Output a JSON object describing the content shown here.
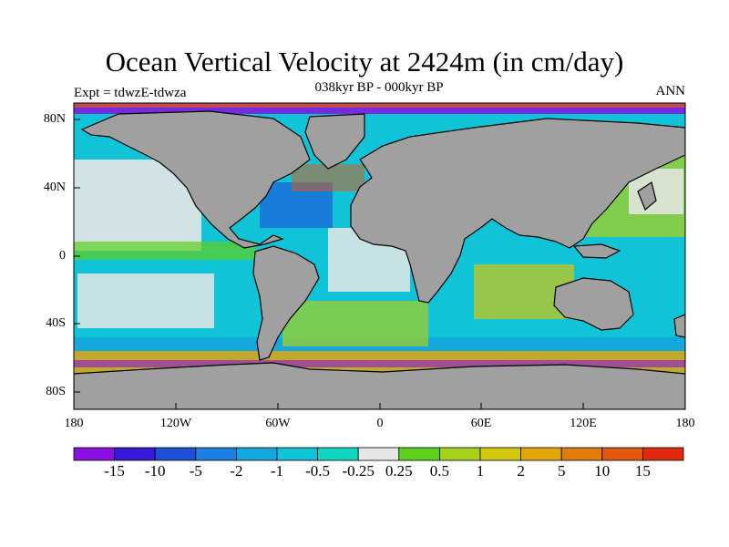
{
  "title": "Ocean Vertical Velocity at 2424m (in cm/day)",
  "subtitle": "038kyr BP - 000kyr BP",
  "left_label": "Expt = tdwzE-tdwza",
  "right_label": "ANN",
  "axes": {
    "lat_ticks": [
      "80N",
      "40N",
      "0",
      "40S",
      "80S"
    ],
    "lon_ticks": [
      "180",
      "120W",
      "60W",
      "0",
      "60E",
      "120E",
      "180"
    ],
    "lat_values": [
      80,
      40,
      0,
      -40,
      -80
    ],
    "lon_values": [
      -180,
      -120,
      -60,
      0,
      60,
      120,
      180
    ],
    "lat_range": [
      -90,
      90
    ],
    "lon_range": [
      -180,
      180
    ]
  },
  "colors": {
    "land": "#a0a0a0",
    "coast": "#000000",
    "zero_band": "#e6e6e6"
  },
  "colorbar": {
    "labels": [
      "-15",
      "-10",
      "-5",
      "-2",
      "-1",
      "-0.5",
      "-0.25",
      "0.25",
      "0.5",
      "1",
      "2",
      "5",
      "10",
      "15"
    ],
    "colors": [
      "#8a10e0",
      "#3a18d8",
      "#1e4fd8",
      "#1a7fe0",
      "#14a8dc",
      "#10c3d6",
      "#10d6c0",
      "#e6e6e6",
      "#60d020",
      "#a6d21c",
      "#d2c810",
      "#e0a60c",
      "#e07c0c",
      "#e05810",
      "#e02a10"
    ]
  }
}
